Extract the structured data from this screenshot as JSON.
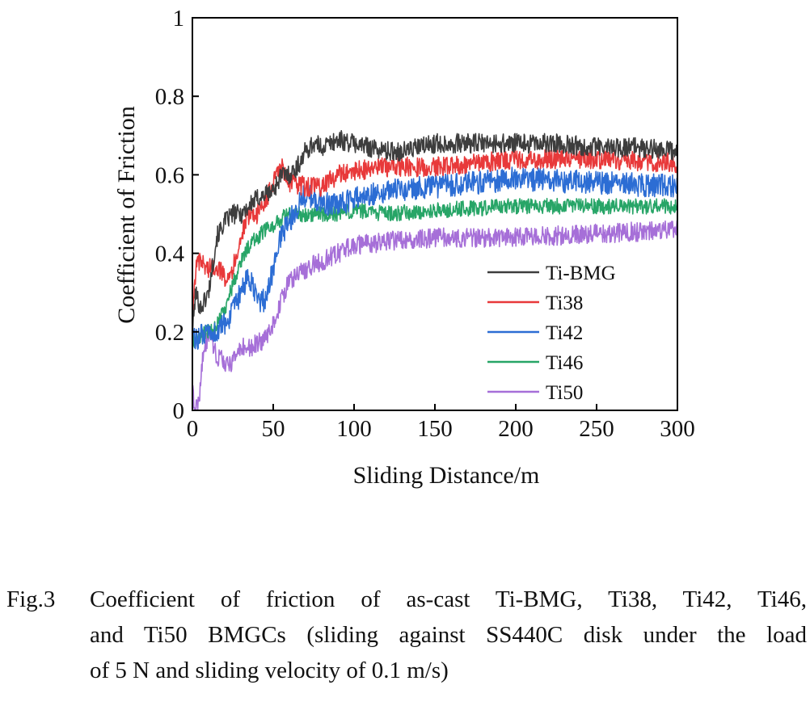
{
  "chart_data": {
    "type": "line",
    "xlabel": "Sliding Distance/m",
    "ylabel": "Coefficient of Friction",
    "xlim": [
      0,
      300
    ],
    "ylim": [
      0,
      1
    ],
    "xticks": [
      0,
      50,
      100,
      150,
      200,
      250,
      300
    ],
    "yticks": [
      0,
      0.2,
      0.4,
      0.6,
      0.8,
      1
    ],
    "ytick_labels": [
      "0",
      "0.2",
      "0.4",
      "0.6",
      "0.8",
      "1"
    ],
    "grid": false,
    "legend_position": "lower-right",
    "series": [
      {
        "name": "Ti-BMG",
        "color": "#3d3d3d",
        "noise": 0.025,
        "x": [
          0,
          2,
          5,
          10,
          15,
          20,
          25,
          30,
          35,
          40,
          45,
          50,
          55,
          60,
          65,
          70,
          75,
          80,
          90,
          100,
          110,
          120,
          130,
          150,
          175,
          200,
          225,
          250,
          275,
          300
        ],
        "y": [
          0.2,
          0.3,
          0.26,
          0.3,
          0.44,
          0.48,
          0.5,
          0.5,
          0.52,
          0.54,
          0.55,
          0.56,
          0.6,
          0.6,
          0.62,
          0.66,
          0.68,
          0.67,
          0.69,
          0.68,
          0.67,
          0.66,
          0.66,
          0.68,
          0.68,
          0.68,
          0.68,
          0.67,
          0.67,
          0.66
        ]
      },
      {
        "name": "Ti38",
        "color": "#e8393a",
        "noise": 0.025,
        "x": [
          0,
          2,
          5,
          10,
          15,
          20,
          25,
          30,
          35,
          40,
          45,
          50,
          55,
          60,
          70,
          80,
          90,
          100,
          120,
          150,
          200,
          250,
          300
        ],
        "y": [
          0.22,
          0.36,
          0.38,
          0.36,
          0.37,
          0.34,
          0.36,
          0.44,
          0.5,
          0.5,
          0.53,
          0.58,
          0.62,
          0.58,
          0.57,
          0.57,
          0.6,
          0.61,
          0.62,
          0.62,
          0.64,
          0.64,
          0.63
        ]
      },
      {
        "name": "Ti42",
        "color": "#2c6dd4",
        "noise": 0.03,
        "x": [
          0,
          2,
          5,
          10,
          15,
          20,
          25,
          30,
          35,
          40,
          45,
          50,
          55,
          60,
          65,
          70,
          80,
          90,
          100,
          120,
          150,
          200,
          250,
          300
        ],
        "y": [
          0.18,
          0.18,
          0.19,
          0.19,
          0.2,
          0.22,
          0.25,
          0.3,
          0.34,
          0.28,
          0.28,
          0.36,
          0.45,
          0.48,
          0.52,
          0.55,
          0.53,
          0.52,
          0.54,
          0.56,
          0.57,
          0.59,
          0.58,
          0.57
        ]
      },
      {
        "name": "Ti46",
        "color": "#27a567",
        "noise": 0.02,
        "x": [
          0,
          2,
          5,
          10,
          15,
          20,
          25,
          30,
          35,
          40,
          45,
          50,
          55,
          60,
          70,
          80,
          90,
          100,
          120,
          150,
          200,
          250,
          300
        ],
        "y": [
          0.17,
          0.18,
          0.19,
          0.2,
          0.22,
          0.26,
          0.32,
          0.38,
          0.42,
          0.44,
          0.46,
          0.47,
          0.49,
          0.5,
          0.5,
          0.5,
          0.5,
          0.51,
          0.5,
          0.51,
          0.52,
          0.52,
          0.52
        ]
      },
      {
        "name": "Ti50",
        "color": "#a66fd8",
        "noise": 0.025,
        "x": [
          0,
          2,
          4,
          6,
          8,
          10,
          15,
          20,
          25,
          30,
          35,
          40,
          45,
          50,
          55,
          60,
          70,
          80,
          90,
          100,
          120,
          150,
          200,
          250,
          300
        ],
        "y": [
          0.05,
          0.0,
          0.02,
          0.12,
          0.16,
          0.2,
          0.14,
          0.12,
          0.12,
          0.16,
          0.16,
          0.17,
          0.18,
          0.22,
          0.28,
          0.33,
          0.36,
          0.38,
          0.4,
          0.42,
          0.43,
          0.44,
          0.44,
          0.45,
          0.46
        ]
      }
    ]
  },
  "caption": {
    "label": "Fig.3",
    "line1": "Coefficient of friction of as-cast Ti-BMG, Ti38, Ti42, Ti46,",
    "line2": "and Ti50 BMGCs (sliding against SS440C disk under the load",
    "line3": "of 5 N and sliding velocity of 0.1 m/s)"
  }
}
